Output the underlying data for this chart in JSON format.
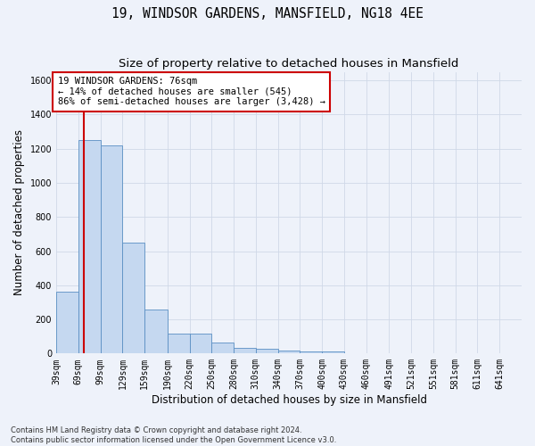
{
  "title": "19, WINDSOR GARDENS, MANSFIELD, NG18 4EE",
  "subtitle": "Size of property relative to detached houses in Mansfield",
  "xlabel": "Distribution of detached houses by size in Mansfield",
  "ylabel": "Number of detached properties",
  "footnote": "Contains HM Land Registry data © Crown copyright and database right 2024.\nContains public sector information licensed under the Open Government Licence v3.0.",
  "bar_left_edges": [
    39,
    69,
    99,
    129,
    159,
    190,
    220,
    250,
    280,
    310,
    340,
    370,
    400,
    430,
    460,
    491,
    521,
    551,
    581,
    611,
    641
  ],
  "bar_widths": [
    30,
    30,
    30,
    30,
    31,
    30,
    30,
    30,
    30,
    30,
    30,
    30,
    30,
    30,
    29,
    30,
    30,
    30,
    30,
    30,
    30
  ],
  "bar_heights": [
    360,
    1250,
    1220,
    650,
    260,
    115,
    115,
    65,
    35,
    30,
    20,
    10,
    10,
    0,
    0,
    0,
    0,
    0,
    0,
    0,
    0
  ],
  "tick_labels": [
    "39sqm",
    "69sqm",
    "99sqm",
    "129sqm",
    "159sqm",
    "190sqm",
    "220sqm",
    "250sqm",
    "280sqm",
    "310sqm",
    "340sqm",
    "370sqm",
    "400sqm",
    "430sqm",
    "460sqm",
    "491sqm",
    "521sqm",
    "551sqm",
    "581sqm",
    "611sqm",
    "641sqm"
  ],
  "bar_color": "#c5d8f0",
  "bar_edge_color": "#5a8fc3",
  "property_line_x": 76,
  "property_line_color": "#cc0000",
  "annotation_text": "19 WINDSOR GARDENS: 76sqm\n← 14% of detached houses are smaller (545)\n86% of semi-detached houses are larger (3,428) →",
  "annotation_box_color": "#ffffff",
  "annotation_box_edge": "#cc0000",
  "ylim": [
    0,
    1650
  ],
  "yticks": [
    0,
    200,
    400,
    600,
    800,
    1000,
    1200,
    1400,
    1600
  ],
  "grid_color": "#d0d8e8",
  "background_color": "#eef2fa",
  "title_fontsize": 10.5,
  "subtitle_fontsize": 9.5,
  "axis_label_fontsize": 8.5,
  "tick_fontsize": 7,
  "annotation_fontsize": 7.5,
  "footnote_fontsize": 6.0
}
